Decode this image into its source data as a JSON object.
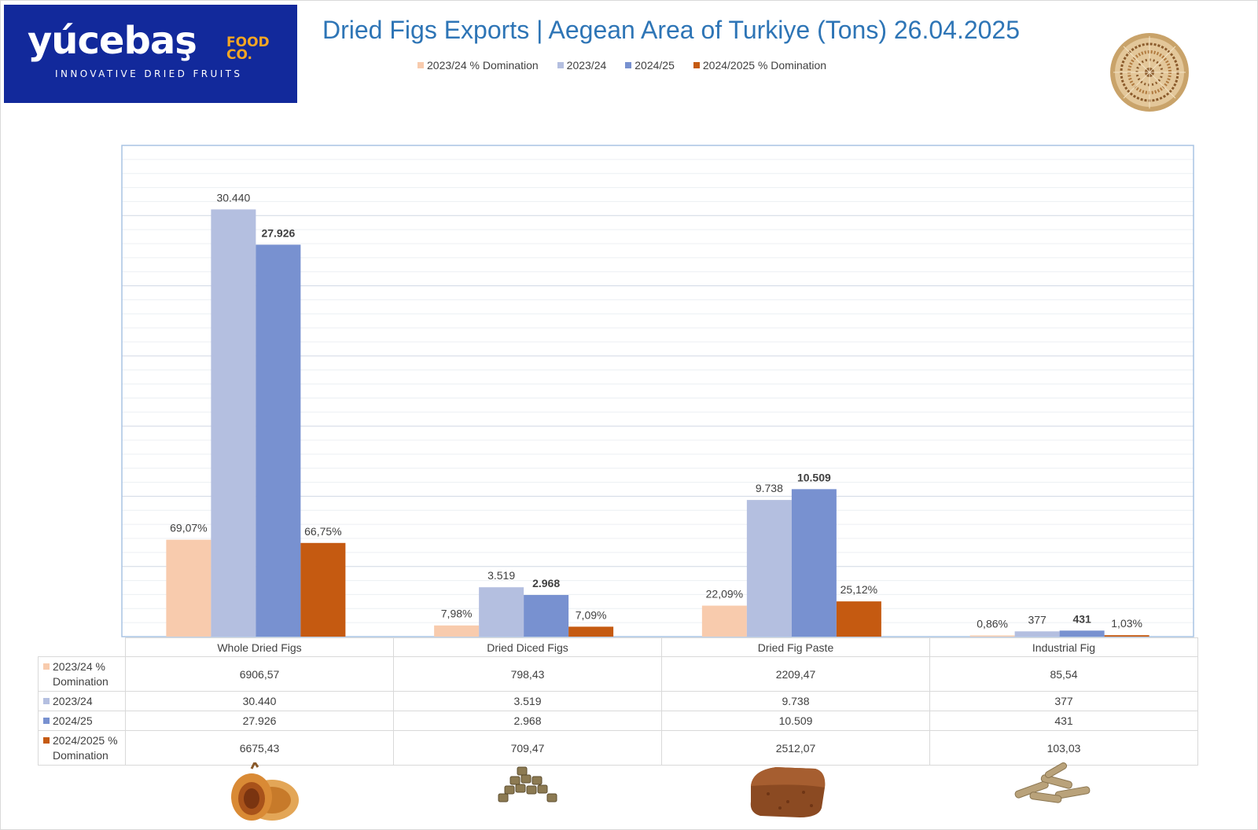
{
  "brand": {
    "wordmark": "yúcebaş",
    "sub": "FOOD CO.",
    "tagline": "INNOVATIVE DRIED FRUITS"
  },
  "chart_data": {
    "type": "bar",
    "title": "Dried Figs Exports | Aegean Area of Turkiye (Tons) 26.04.2025",
    "categories": [
      "Whole Dried Figs",
      "Dried Diced Figs",
      "Dried Fig Paste",
      "Industrial Fig"
    ],
    "series": [
      {
        "name": "2023/24  % Domination",
        "color": "#f8cbad",
        "values": [
          6906.57,
          798.43,
          2209.47,
          85.54
        ],
        "labels": [
          "69,07%",
          "7,98%",
          "22,09%",
          "0,86%"
        ],
        "table": [
          "6906,57",
          "798,43",
          "2209,47",
          "85,54"
        ],
        "bold": false
      },
      {
        "name": "2023/24",
        "color": "#b4bfe0",
        "values": [
          30440,
          3519,
          9738,
          377
        ],
        "labels": [
          "30.440",
          "3.519",
          "9.738",
          "377"
        ],
        "table": [
          "30.440",
          "3.519",
          "9.738",
          "377"
        ],
        "bold": false
      },
      {
        "name": "2024/25",
        "color": "#7891d0",
        "values": [
          27926,
          2968,
          10509,
          431
        ],
        "labels": [
          "27.926",
          "2.968",
          "10.509",
          "431"
        ],
        "table": [
          "27.926",
          "2.968",
          "10.509",
          "431"
        ],
        "bold": true
      },
      {
        "name": "2024/2025 % Domination",
        "color": "#c55a11",
        "values": [
          6675.43,
          709.47,
          2512.07,
          103.03
        ],
        "labels": [
          "66,75%",
          "7,09%",
          "25,12%",
          "1,03%"
        ],
        "table": [
          "6675,43",
          "709,47",
          "2512,07",
          "103,03"
        ],
        "bold": false
      }
    ],
    "ylim": [
      0,
      35000
    ],
    "major_gridline_step": 5000,
    "minor_gridlines": true,
    "legend_position": "top",
    "data_table": true
  },
  "table_row_headers": [
    "2023/24  % Domination",
    "2023/24",
    "2024/25",
    "2024/2025 % Domination"
  ],
  "product_images": [
    "whole-dried-fig",
    "diced-figs",
    "fig-paste-block",
    "industrial-fig-pieces"
  ],
  "colors": {
    "title": "#2e75b6",
    "brand_blue": "#12299b",
    "brand_orange": "#f5a623",
    "grid": "#d9d9d9",
    "plot_border": "#a9c4e4"
  }
}
